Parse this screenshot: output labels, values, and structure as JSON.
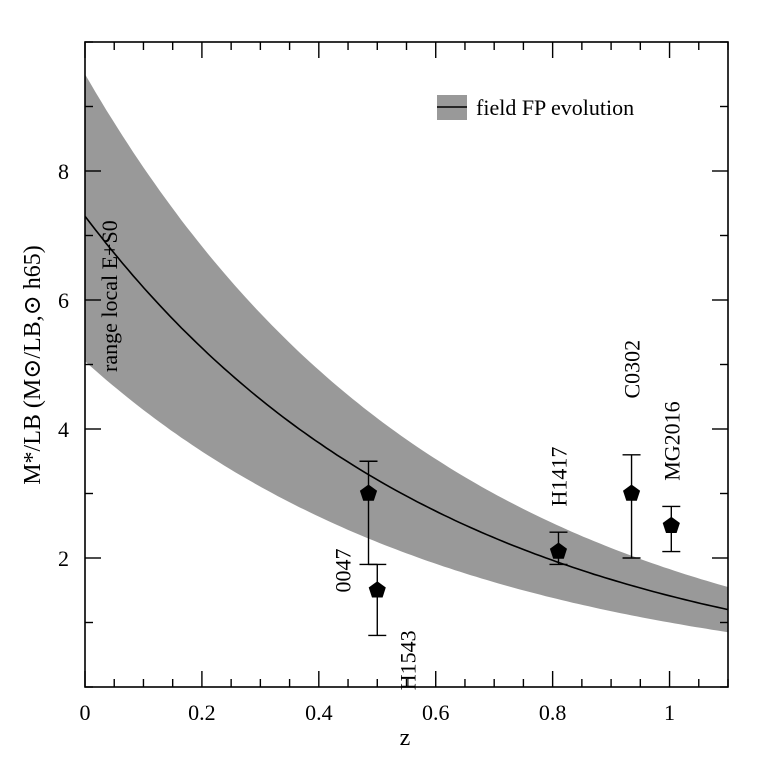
{
  "chart_data": {
    "type": "scatter",
    "title": "",
    "xlabel": "z",
    "ylabel": "M*/LB (M⊙/LB,⊙ h65)",
    "xlim": [
      0,
      1.1
    ],
    "ylim": [
      0,
      10
    ],
    "x_ticks": [
      0,
      0.2,
      0.4,
      0.6,
      0.8,
      1
    ],
    "x_tick_labels": [
      "0",
      "0.2",
      "0.4",
      "0.6",
      "0.8",
      "1"
    ],
    "y_ticks": [
      2,
      4,
      6,
      8
    ],
    "y_tick_labels": [
      "2",
      "4",
      "6",
      "8"
    ],
    "legend": {
      "label": "field FP evolution",
      "placement": "top-right"
    },
    "band_annotation": "range local E+S0",
    "model": {
      "name": "field FP evolution",
      "center_at_z0": 7.3,
      "center_at_z1_1": 1.2,
      "upper_at_z0": 9.5,
      "upper_at_z1_1": 1.55,
      "lower_at_z0": 5.05,
      "lower_at_z1_1": 0.85,
      "x_samples": [
        0,
        0.1,
        0.2,
        0.3,
        0.4,
        0.5,
        0.6,
        0.7,
        0.8,
        0.9,
        1.0,
        1.1
      ],
      "center": [
        7.3,
        6.2,
        5.3,
        4.5,
        3.8,
        3.2,
        2.7,
        2.3,
        1.95,
        1.65,
        1.4,
        1.2
      ],
      "upper": [
        9.5,
        8.1,
        6.9,
        5.85,
        4.95,
        4.2,
        3.55,
        3.0,
        2.55,
        2.15,
        1.8,
        1.55
      ],
      "lower": [
        5.05,
        4.3,
        3.65,
        3.1,
        2.65,
        2.25,
        1.9,
        1.6,
        1.35,
        1.15,
        1.0,
        0.85
      ]
    },
    "points": [
      {
        "label": "0047",
        "z": 0.485,
        "value": 3.0,
        "err_low": 1.9,
        "err_high": 3.5
      },
      {
        "label": "H1543",
        "z": 0.5,
        "value": 1.5,
        "err_low": 0.8,
        "err_high": 1.9
      },
      {
        "label": "H1417",
        "z": 0.81,
        "value": 2.1,
        "err_low": 1.9,
        "err_high": 2.4
      },
      {
        "label": "C0302",
        "z": 0.935,
        "value": 3.0,
        "err_low": 2.0,
        "err_high": 3.6
      },
      {
        "label": "MG2016",
        "z": 1.003,
        "value": 2.5,
        "err_low": 2.1,
        "err_high": 2.8
      }
    ]
  }
}
